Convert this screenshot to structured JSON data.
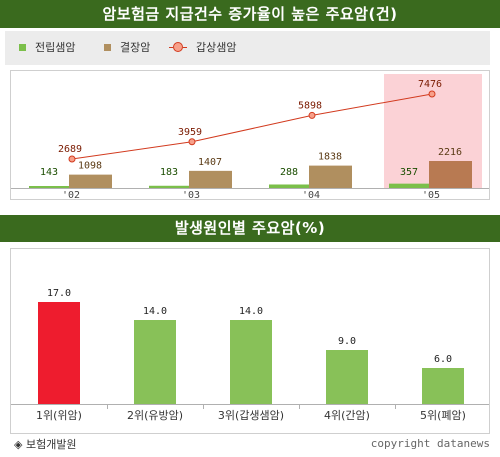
{
  "title_top": "암보험금 지급건수 증가율이 높은 주요암(건)",
  "title_bottom": "발생원인별 주요암(%)",
  "legend": [
    {
      "label": "전립샘암",
      "color": "#7bbf4a"
    },
    {
      "label": "결장암",
      "color": "#b08f5f"
    },
    {
      "label": "갑상샘암",
      "color": "#d23a1e"
    }
  ],
  "footer": {
    "source": "◈ 보험개발원",
    "copyright": "copyright datanews"
  },
  "chart_data": [
    {
      "type": "bar",
      "categories": [
        "'02",
        "'03",
        "'04",
        "'05"
      ],
      "series": [
        {
          "name": "전립샘암",
          "type": "bar",
          "color": "#7bbf4a",
          "values": [
            143,
            183,
            288,
            357
          ]
        },
        {
          "name": "결장암",
          "type": "bar",
          "color": "#b08f5f",
          "values": [
            1098,
            1407,
            1838,
            2216
          ]
        },
        {
          "name": "갑상샘암",
          "type": "line",
          "color": "#d23a1e",
          "values": [
            2689,
            3959,
            5898,
            7476
          ]
        }
      ],
      "highlight_category": "'05",
      "highlight_color": "#fbd2d6"
    },
    {
      "type": "bar",
      "categories": [
        "1위(위암)",
        "2위(유방암)",
        "3위(갑생샘암)",
        "4위(간암)",
        "5위(폐암)"
      ],
      "values": [
        "17.0",
        "14.0",
        "14.0",
        "9.0",
        "6.0"
      ],
      "colors": [
        "#ee1c2e",
        "#88c158",
        "#88c158",
        "#88c158",
        "#88c158"
      ],
      "ylim": [
        0,
        20
      ]
    }
  ]
}
